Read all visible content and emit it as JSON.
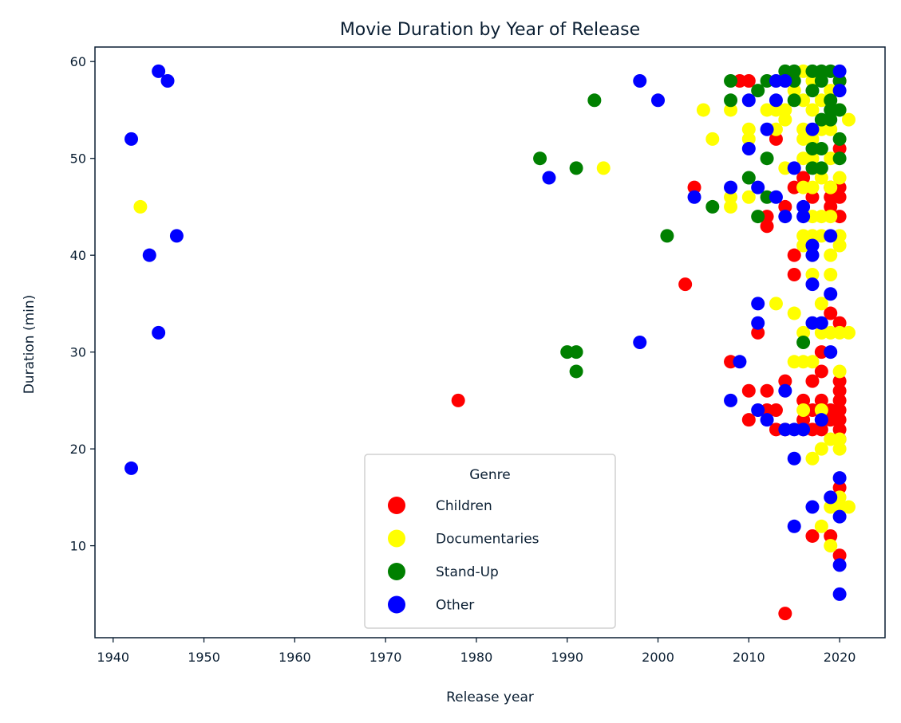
{
  "chart_data": {
    "type": "scatter",
    "title": "Movie Duration by Year of Release",
    "xlabel": "Release year",
    "ylabel": "Duration (min)",
    "xlim": [
      1938,
      2025
    ],
    "ylim": [
      0.5,
      61.5
    ],
    "xticks": [
      1940,
      1950,
      1960,
      1970,
      1980,
      1990,
      2000,
      2010,
      2020
    ],
    "yticks": [
      10,
      20,
      30,
      40,
      50,
      60
    ],
    "grid": false,
    "legend": {
      "title": "Genre",
      "placement": "bottom-center"
    },
    "series": [
      {
        "name": "Children",
        "color": "#ff0000",
        "points": [
          [
            1978,
            25
          ],
          [
            2003,
            37
          ],
          [
            2004,
            47
          ],
          [
            2008,
            29
          ],
          [
            2009,
            58
          ],
          [
            2010,
            58
          ],
          [
            2010,
            26
          ],
          [
            2010,
            23
          ],
          [
            2011,
            32
          ],
          [
            2012,
            44
          ],
          [
            2012,
            43
          ],
          [
            2012,
            26
          ],
          [
            2012,
            24
          ],
          [
            2013,
            24
          ],
          [
            2013,
            22
          ],
          [
            2013,
            52
          ],
          [
            2014,
            45
          ],
          [
            2014,
            27
          ],
          [
            2014,
            22
          ],
          [
            2014,
            3
          ],
          [
            2015,
            40
          ],
          [
            2015,
            38
          ],
          [
            2015,
            47
          ],
          [
            2016,
            48
          ],
          [
            2016,
            23
          ],
          [
            2016,
            25
          ],
          [
            2016,
            22
          ],
          [
            2017,
            46
          ],
          [
            2017,
            27
          ],
          [
            2017,
            22
          ],
          [
            2017,
            11
          ],
          [
            2017,
            24
          ],
          [
            2018,
            30
          ],
          [
            2018,
            28
          ],
          [
            2018,
            25
          ],
          [
            2018,
            22
          ],
          [
            2018,
            23
          ],
          [
            2019,
            34
          ],
          [
            2019,
            24
          ],
          [
            2019,
            23
          ],
          [
            2019,
            11
          ],
          [
            2019,
            47
          ],
          [
            2019,
            46
          ],
          [
            2019,
            45
          ],
          [
            2020,
            46
          ],
          [
            2020,
            47
          ],
          [
            2020,
            44
          ],
          [
            2020,
            33
          ],
          [
            2020,
            27
          ],
          [
            2020,
            26
          ],
          [
            2020,
            25
          ],
          [
            2020,
            24
          ],
          [
            2020,
            23
          ],
          [
            2020,
            22
          ],
          [
            2020,
            21
          ],
          [
            2020,
            16
          ],
          [
            2020,
            9
          ],
          [
            2020,
            51
          ],
          [
            2020,
            58
          ]
        ]
      },
      {
        "name": "Documentaries",
        "color": "#ffff00",
        "points": [
          [
            1943,
            45
          ],
          [
            1994,
            49
          ],
          [
            2005,
            55
          ],
          [
            2006,
            52
          ],
          [
            2008,
            45
          ],
          [
            2008,
            46
          ],
          [
            2008,
            55
          ],
          [
            2010,
            53
          ],
          [
            2010,
            52
          ],
          [
            2010,
            46
          ],
          [
            2012,
            55
          ],
          [
            2013,
            55
          ],
          [
            2013,
            53
          ],
          [
            2013,
            35
          ],
          [
            2014,
            55
          ],
          [
            2014,
            54
          ],
          [
            2014,
            49
          ],
          [
            2015,
            57
          ],
          [
            2015,
            34
          ],
          [
            2015,
            29
          ],
          [
            2016,
            59
          ],
          [
            2016,
            56
          ],
          [
            2016,
            53
          ],
          [
            2016,
            52
          ],
          [
            2016,
            50
          ],
          [
            2016,
            47
          ],
          [
            2016,
            42
          ],
          [
            2016,
            41
          ],
          [
            2016,
            32
          ],
          [
            2016,
            29
          ],
          [
            2016,
            24
          ],
          [
            2017,
            58
          ],
          [
            2017,
            55
          ],
          [
            2017,
            52
          ],
          [
            2017,
            50
          ],
          [
            2017,
            47
          ],
          [
            2017,
            44
          ],
          [
            2017,
            42
          ],
          [
            2017,
            40
          ],
          [
            2017,
            38
          ],
          [
            2017,
            29
          ],
          [
            2017,
            19
          ],
          [
            2018,
            56
          ],
          [
            2018,
            53
          ],
          [
            2018,
            48
          ],
          [
            2018,
            44
          ],
          [
            2018,
            42
          ],
          [
            2018,
            35
          ],
          [
            2018,
            32
          ],
          [
            2018,
            24
          ],
          [
            2018,
            20
          ],
          [
            2018,
            12
          ],
          [
            2019,
            57
          ],
          [
            2019,
            53
          ],
          [
            2019,
            50
          ],
          [
            2019,
            47
          ],
          [
            2019,
            44
          ],
          [
            2019,
            40
          ],
          [
            2019,
            38
          ],
          [
            2019,
            32
          ],
          [
            2019,
            21
          ],
          [
            2019,
            14
          ],
          [
            2019,
            10
          ],
          [
            2020,
            55
          ],
          [
            2020,
            48
          ],
          [
            2020,
            42
          ],
          [
            2020,
            41
          ],
          [
            2020,
            32
          ],
          [
            2020,
            28
          ],
          [
            2020,
            21
          ],
          [
            2020,
            20
          ],
          [
            2020,
            15
          ],
          [
            2020,
            14
          ],
          [
            2021,
            54
          ],
          [
            2021,
            32
          ],
          [
            2021,
            14
          ]
        ]
      },
      {
        "name": "Stand-Up",
        "color": "#008000",
        "points": [
          [
            1987,
            50
          ],
          [
            1990,
            30
          ],
          [
            1991,
            30
          ],
          [
            1991,
            49
          ],
          [
            1991,
            28
          ],
          [
            1993,
            56
          ],
          [
            2001,
            42
          ],
          [
            2006,
            45
          ],
          [
            2008,
            58
          ],
          [
            2008,
            56
          ],
          [
            2010,
            48
          ],
          [
            2011,
            57
          ],
          [
            2011,
            44
          ],
          [
            2012,
            58
          ],
          [
            2012,
            50
          ],
          [
            2012,
            46
          ],
          [
            2014,
            59
          ],
          [
            2015,
            59
          ],
          [
            2015,
            58
          ],
          [
            2015,
            56
          ],
          [
            2016,
            31
          ],
          [
            2017,
            59
          ],
          [
            2017,
            57
          ],
          [
            2017,
            51
          ],
          [
            2017,
            49
          ],
          [
            2018,
            59
          ],
          [
            2018,
            58
          ],
          [
            2018,
            54
          ],
          [
            2018,
            51
          ],
          [
            2018,
            49
          ],
          [
            2019,
            59
          ],
          [
            2019,
            56
          ],
          [
            2019,
            55
          ],
          [
            2019,
            54
          ],
          [
            2020,
            58
          ],
          [
            2020,
            55
          ],
          [
            2020,
            52
          ],
          [
            2020,
            50
          ]
        ]
      },
      {
        "name": "Other",
        "color": "#0000ff",
        "points": [
          [
            1942,
            52
          ],
          [
            1942,
            18
          ],
          [
            1944,
            40
          ],
          [
            1945,
            59
          ],
          [
            1945,
            32
          ],
          [
            1946,
            58
          ],
          [
            1947,
            42
          ],
          [
            1988,
            48
          ],
          [
            1998,
            58
          ],
          [
            1998,
            31
          ],
          [
            2000,
            56
          ],
          [
            2004,
            46
          ],
          [
            2008,
            47
          ],
          [
            2008,
            25
          ],
          [
            2009,
            29
          ],
          [
            2010,
            56
          ],
          [
            2010,
            51
          ],
          [
            2011,
            47
          ],
          [
            2011,
            35
          ],
          [
            2011,
            33
          ],
          [
            2011,
            24
          ],
          [
            2012,
            53
          ],
          [
            2012,
            23
          ],
          [
            2013,
            58
          ],
          [
            2013,
            56
          ],
          [
            2013,
            46
          ],
          [
            2014,
            58
          ],
          [
            2014,
            44
          ],
          [
            2014,
            26
          ],
          [
            2014,
            22
          ],
          [
            2015,
            49
          ],
          [
            2015,
            22
          ],
          [
            2015,
            19
          ],
          [
            2015,
            12
          ],
          [
            2016,
            45
          ],
          [
            2016,
            44
          ],
          [
            2016,
            22
          ],
          [
            2017,
            53
          ],
          [
            2017,
            41
          ],
          [
            2017,
            40
          ],
          [
            2017,
            37
          ],
          [
            2017,
            33
          ],
          [
            2017,
            14
          ],
          [
            2018,
            33
          ],
          [
            2018,
            23
          ],
          [
            2019,
            42
          ],
          [
            2019,
            36
          ],
          [
            2019,
            30
          ],
          [
            2019,
            15
          ],
          [
            2020,
            59
          ],
          [
            2020,
            57
          ],
          [
            2020,
            17
          ],
          [
            2020,
            13
          ],
          [
            2020,
            8
          ],
          [
            2020,
            5
          ]
        ]
      }
    ]
  }
}
